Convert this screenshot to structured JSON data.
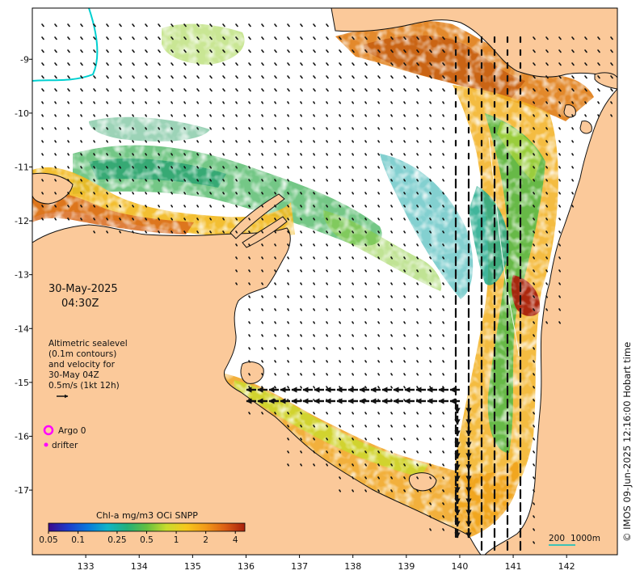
{
  "map": {
    "date": "30-May-2025",
    "time": "04:30Z",
    "legend_text": [
      "Altimetric sealevel",
      "(0.1m contours)",
      "and velocity for",
      "30-May 04Z",
      "0.5m/s (1kt 12h)"
    ],
    "argo_label": "Argo 0",
    "drifter_label": "drifter",
    "colorbar_title": "Chl-a mg/m3 OCi SNPP",
    "colorbar_ticks": [
      "0.05",
      "0.1",
      "0.25",
      "0.5",
      "1",
      "2",
      "4"
    ],
    "colorbar_values": [
      0.05,
      0.1,
      0.25,
      0.5,
      1,
      2,
      4
    ],
    "colorbar_range": [
      0.05,
      5.0
    ],
    "scale_label_left": "200",
    "scale_label_right": "1000m",
    "credit": "© IMOS 09-Jun-2025 12:16:00 Hobart time",
    "lon_ticks": [
      "133",
      "134",
      "135",
      "136",
      "137",
      "138",
      "139",
      "140",
      "141",
      "142"
    ],
    "lat_ticks": [
      "-9",
      "-10",
      "-11",
      "-12",
      "-13",
      "-14",
      "-15",
      "-16",
      "-17"
    ],
    "lon_range": [
      132.0,
      142.95
    ],
    "lat_range": [
      -18.2,
      -8.05
    ],
    "colors": {
      "land": "#fbc99a",
      "ocean": "#ffffff",
      "coast": "#111111",
      "argo": "#ff00ff",
      "drifter": "#ff00ff",
      "scale_bar": "#00c0c0",
      "cmap": [
        "#3c0a8c",
        "#1c3ccc",
        "#0a78dc",
        "#10b4c8",
        "#22b07a",
        "#64c040",
        "#c8dc2c",
        "#f6c81c",
        "#f29a18",
        "#dc5e14",
        "#a8200c"
      ]
    }
  }
}
